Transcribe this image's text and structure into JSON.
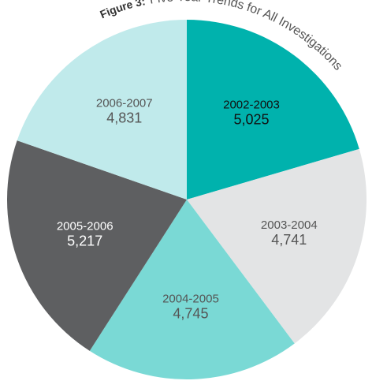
{
  "chart_data": {
    "type": "pie",
    "figure_label": "Figure 3:",
    "title": "Five Year Trends for All Investigations",
    "categories": [
      "2002-2003",
      "2003-2004",
      "2004-2005",
      "2005-2006",
      "2006-2007"
    ],
    "values": [
      5025,
      4741,
      4745,
      5217,
      4831
    ],
    "value_labels": [
      "5,025",
      "4,741",
      "4,745",
      "5,217",
      "4,831"
    ],
    "colors": [
      "#00b2ad",
      "#e3e4e5",
      "#7ad9d5",
      "#5e5f61",
      "#c0eaeb"
    ]
  }
}
